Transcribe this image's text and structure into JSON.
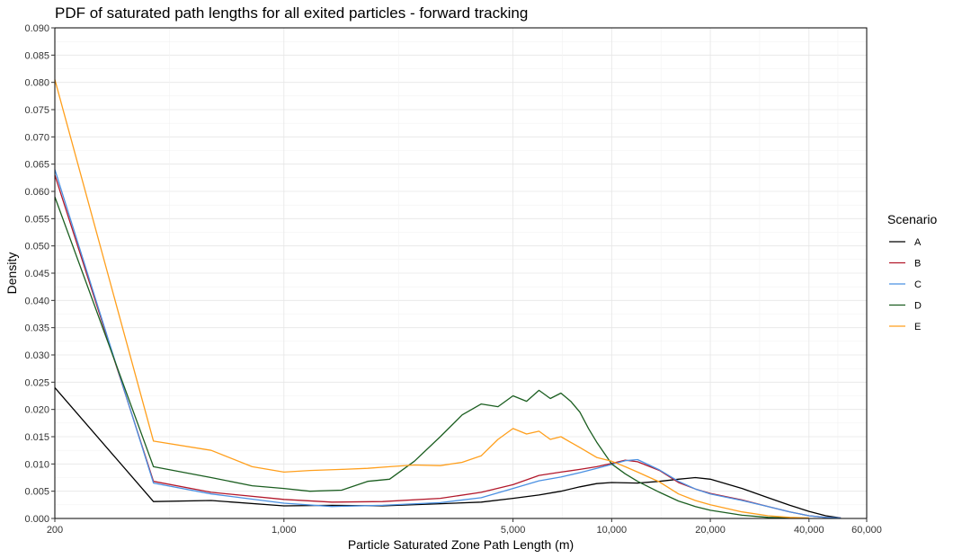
{
  "chart_data": {
    "type": "line",
    "title": "PDF of saturated path lengths for all exited particles - forward tracking",
    "xlabel": "Particle Saturated Zone Path Length (m)",
    "ylabel": "Density",
    "x_scale": "log",
    "xlim": [
      200,
      60000
    ],
    "ylim": [
      0,
      0.09
    ],
    "x_ticks": [
      200,
      1000,
      5000,
      10000,
      20000,
      40000,
      60000
    ],
    "x_tick_labels": [
      "200",
      "1,000",
      "5,000",
      "10,000",
      "20,000",
      "40,000",
      "60,000"
    ],
    "y_ticks": [
      0,
      0.005,
      0.01,
      0.015,
      0.02,
      0.025,
      0.03,
      0.035,
      0.04,
      0.045,
      0.05,
      0.055,
      0.06,
      0.065,
      0.07,
      0.075,
      0.08,
      0.085,
      0.09
    ],
    "y_tick_labels": [
      "0.000",
      "0.005",
      "0.010",
      "0.015",
      "0.020",
      "0.025",
      "0.030",
      "0.035",
      "0.040",
      "0.045",
      "0.050",
      "0.055",
      "0.060",
      "0.065",
      "0.070",
      "0.075",
      "0.080",
      "0.085",
      "0.090"
    ],
    "grid": true,
    "legend": {
      "title": "Scenario",
      "position": "right"
    },
    "series": [
      {
        "name": "A",
        "color": "#000000",
        "x": [
          200,
          400,
          600,
          1000,
          1400,
          2000,
          3000,
          4000,
          5000,
          6000,
          7000,
          8000,
          9000,
          10000,
          12000,
          14000,
          16000,
          18000,
          20000,
          25000,
          30000,
          35000,
          40000,
          45000,
          50000
        ],
        "y": [
          0.024,
          0.0031,
          0.0033,
          0.0023,
          0.0024,
          0.0023,
          0.0027,
          0.003,
          0.0037,
          0.0043,
          0.005,
          0.0058,
          0.0064,
          0.0066,
          0.0065,
          0.0068,
          0.0072,
          0.0075,
          0.0072,
          0.0055,
          0.0038,
          0.0024,
          0.0013,
          0.0005,
          0.0001
        ]
      },
      {
        "name": "B",
        "color": "#b2182b",
        "x": [
          200,
          400,
          600,
          1000,
          1400,
          2000,
          3000,
          4000,
          5000,
          6000,
          7000,
          8000,
          9000,
          10000,
          11000,
          12000,
          14000,
          16000,
          18000,
          20000,
          25000,
          30000,
          35000,
          40000,
          45000,
          50000
        ],
        "y": [
          0.063,
          0.0068,
          0.0048,
          0.0035,
          0.003,
          0.0031,
          0.0037,
          0.0048,
          0.0062,
          0.0079,
          0.0085,
          0.009,
          0.0095,
          0.0101,
          0.0107,
          0.0104,
          0.0088,
          0.0066,
          0.0054,
          0.0046,
          0.0034,
          0.0022,
          0.0012,
          0.0005,
          0.0002,
          0.0001
        ]
      },
      {
        "name": "C",
        "color": "#4a90e2",
        "x": [
          200,
          400,
          600,
          1000,
          1400,
          2000,
          3000,
          4000,
          5000,
          6000,
          7000,
          8000,
          9000,
          10000,
          11000,
          12000,
          14000,
          16000,
          18000,
          20000,
          25000,
          30000,
          35000,
          40000,
          45000,
          50000
        ],
        "y": [
          0.064,
          0.0065,
          0.0045,
          0.0028,
          0.0022,
          0.0024,
          0.0029,
          0.0038,
          0.0055,
          0.0069,
          0.0076,
          0.0084,
          0.0092,
          0.0099,
          0.0106,
          0.0108,
          0.0089,
          0.0068,
          0.0054,
          0.0045,
          0.0033,
          0.0022,
          0.0012,
          0.0005,
          0.0002,
          0.0001
        ]
      },
      {
        "name": "D",
        "color": "#1b5e20",
        "x": [
          200,
          400,
          600,
          800,
          1000,
          1200,
          1500,
          1800,
          2100,
          2500,
          3000,
          3500,
          4000,
          4500,
          5000,
          5500,
          6000,
          6500,
          7000,
          7500,
          8000,
          8500,
          9000,
          10000,
          11000,
          12000,
          14000,
          16000,
          18000,
          20000,
          25000,
          30000,
          35000
        ],
        "y": [
          0.059,
          0.0095,
          0.0075,
          0.006,
          0.0055,
          0.005,
          0.0052,
          0.0068,
          0.0072,
          0.0105,
          0.015,
          0.019,
          0.021,
          0.0205,
          0.0225,
          0.0215,
          0.0235,
          0.022,
          0.023,
          0.0215,
          0.0195,
          0.0165,
          0.014,
          0.01,
          0.0082,
          0.0068,
          0.0048,
          0.0032,
          0.0022,
          0.0015,
          0.0006,
          0.0002,
          0.0001
        ]
      },
      {
        "name": "E",
        "color": "#ff9f1c",
        "x": [
          200,
          400,
          600,
          800,
          1000,
          1200,
          1500,
          1800,
          2100,
          2500,
          3000,
          3500,
          4000,
          4500,
          5000,
          5500,
          6000,
          6500,
          7000,
          8000,
          9000,
          10000,
          11000,
          12000,
          14000,
          16000,
          18000,
          20000,
          25000,
          30000,
          35000,
          40000
        ],
        "y": [
          0.0805,
          0.0142,
          0.0125,
          0.0095,
          0.0085,
          0.0088,
          0.009,
          0.0092,
          0.0095,
          0.0098,
          0.0097,
          0.0103,
          0.0115,
          0.0145,
          0.0165,
          0.0155,
          0.016,
          0.0145,
          0.015,
          0.013,
          0.0112,
          0.0105,
          0.0095,
          0.0085,
          0.0067,
          0.0045,
          0.0033,
          0.0025,
          0.0012,
          0.0005,
          0.0002,
          0.0001
        ]
      }
    ]
  }
}
